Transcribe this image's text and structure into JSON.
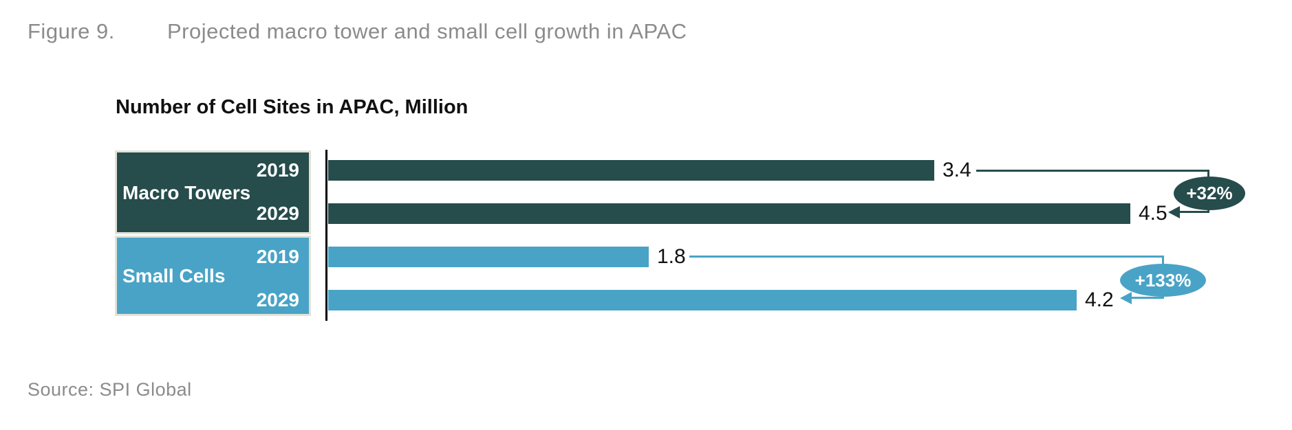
{
  "figure": {
    "label": "Figure 9.",
    "title": "Projected macro tower and small cell growth in APAC"
  },
  "source": "Source: SPI Global",
  "colors": {
    "macro_dark_teal": "#264c4c",
    "small_cells_blue": "#49a3c6",
    "caption_gray": "#8b8b8b",
    "box_border_cream": "#e2e2d8"
  },
  "chart_data": {
    "type": "bar",
    "orientation": "horizontal",
    "title": "Number of Cell Sites in APAC, Million",
    "unit": "Million",
    "xlim": [
      0,
      4.5
    ],
    "grid": false,
    "legend": false,
    "groups": [
      {
        "label": "Macro Towers",
        "color": "#264c4c",
        "growth_label": "+32%",
        "bars": [
          {
            "year": "2019",
            "value": 3.4,
            "value_label": "3.4"
          },
          {
            "year": "2029",
            "value": 4.5,
            "value_label": "4.5"
          }
        ]
      },
      {
        "label": "Small Cells",
        "color": "#49a3c6",
        "growth_label": "+133%",
        "bars": [
          {
            "year": "2019",
            "value": 1.8,
            "value_label": "1.8"
          },
          {
            "year": "2029",
            "value": 4.2,
            "value_label": "4.2"
          }
        ]
      }
    ]
  }
}
